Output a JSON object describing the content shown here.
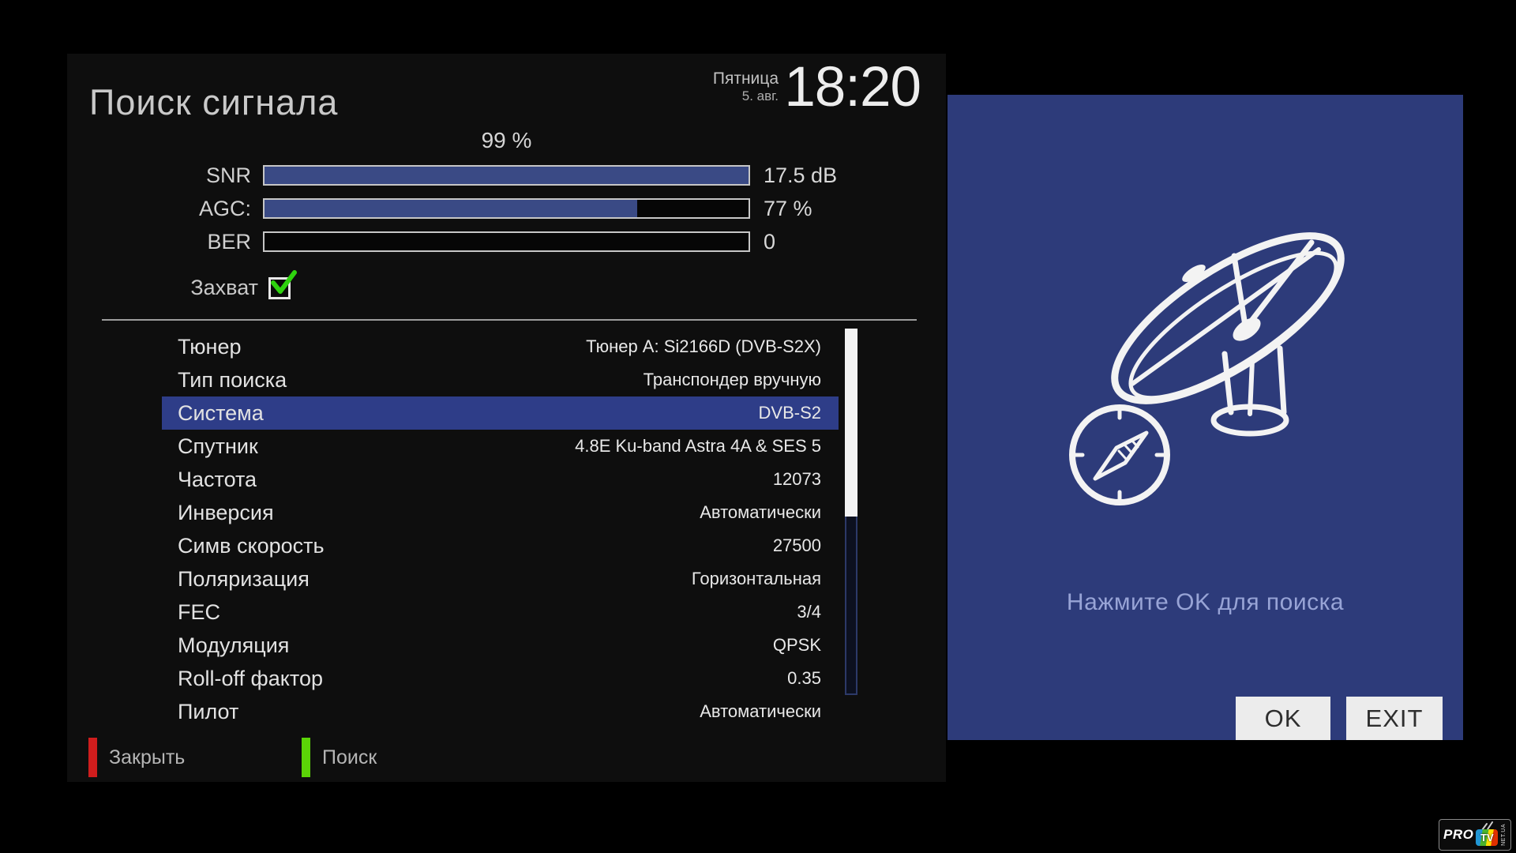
{
  "window": {
    "title": "Поиск сигнала"
  },
  "header": {
    "day": "Пятница",
    "date": "5. авг.",
    "time": "18:20"
  },
  "signal": {
    "strength_percent": "99 %",
    "bars": [
      {
        "label": "SNR",
        "value": "17.5 dB",
        "fill_percent": 100
      },
      {
        "label": "AGC:",
        "value": "77 %",
        "fill_percent": 77
      },
      {
        "label": "BER",
        "value": "0",
        "fill_percent": 0
      }
    ],
    "lock": {
      "label": "Захват",
      "checked": true
    }
  },
  "settings": [
    {
      "label": "Тюнер",
      "value": "Тюнер A: Si2166D (DVB-S2X)",
      "selected": false
    },
    {
      "label": "Тип поиска",
      "value": "Транспондер вручную",
      "selected": false
    },
    {
      "label": "Система",
      "value": "DVB-S2",
      "selected": true
    },
    {
      "label": "Спутник",
      "value": "4.8E Ku-band Astra 4A & SES 5",
      "selected": false
    },
    {
      "label": "Частота",
      "value": "12073",
      "selected": false
    },
    {
      "label": "Инверсия",
      "value": "Автоматически",
      "selected": false
    },
    {
      "label": "Симв скорость",
      "value": "27500",
      "selected": false
    },
    {
      "label": "Поляризация",
      "value": "Горизонтальная",
      "selected": false
    },
    {
      "label": "FEC",
      "value": "3/4",
      "selected": false
    },
    {
      "label": "Модуляция",
      "value": "QPSK",
      "selected": false
    },
    {
      "label": "Roll-off фактор",
      "value": "0.35",
      "selected": false
    },
    {
      "label": "Пилот",
      "value": "Автоматически",
      "selected": false
    }
  ],
  "footer_keys": [
    {
      "color": "#cf1d1d",
      "label": "Закрыть"
    },
    {
      "color": "#5bd407",
      "label": "Поиск"
    }
  ],
  "dialog": {
    "hint": "Нажмите OK для поиска",
    "buttons": [
      {
        "label": "OK"
      },
      {
        "label": "EXIT"
      }
    ]
  },
  "watermark": {
    "pro": "PRO",
    "tv": "TV",
    "suffix": "NET.UA"
  },
  "colors": {
    "dialog_blue": "#2d3b7a",
    "bar_fill_blue": "#3a4a85",
    "selected_row_blue": "#2e3d88",
    "check_green": "#2ed30e",
    "key_red": "#cf1d1d",
    "key_green": "#5bd407"
  }
}
